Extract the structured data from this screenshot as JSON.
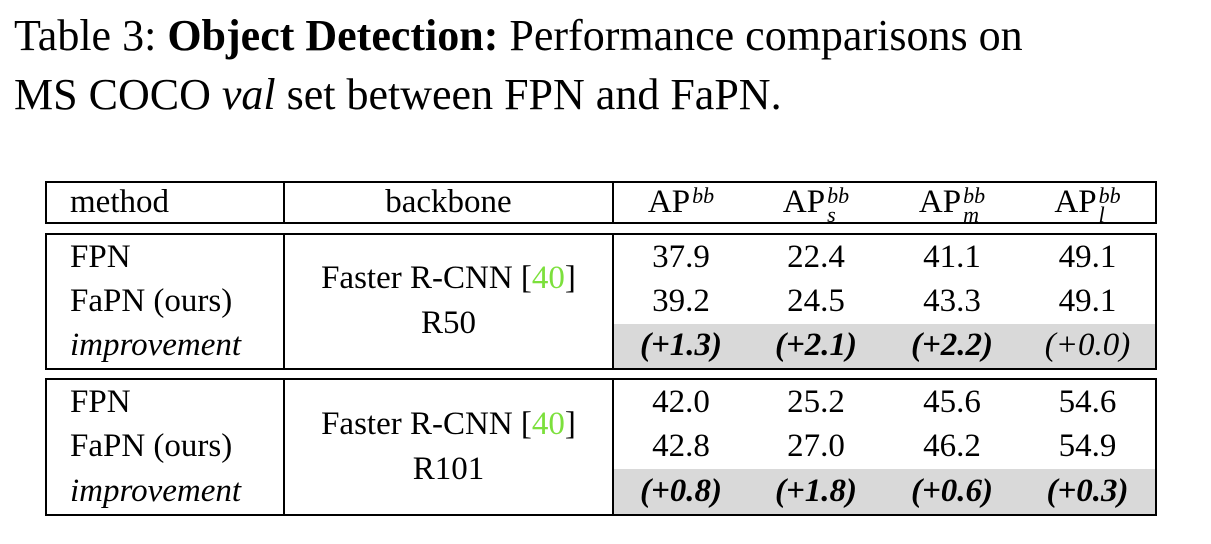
{
  "colors": {
    "cite_green": "#7CE03C",
    "row_shade": "#D9D9D9",
    "text": "#000000"
  },
  "caption": {
    "line1": {
      "prefix": "Table 3:",
      "bold": "Object Detection:",
      "rest": "Performance comparisons on"
    },
    "line2": {
      "pre": "MS COCO",
      "italic": "val",
      "post": "set between FPN and FaPN."
    }
  },
  "table": {
    "header": {
      "method": "method",
      "backbone": "backbone",
      "ap_cols": [
        {
          "base": "AP",
          "sup": "bb",
          "sub": ""
        },
        {
          "base": "AP",
          "sup": "bb",
          "sub": "s"
        },
        {
          "base": "AP",
          "sup": "bb",
          "sub": "m"
        },
        {
          "base": "AP",
          "sup": "bb",
          "sub": "l"
        }
      ]
    },
    "blocks": [
      {
        "backbone": {
          "name": "Faster R-CNN",
          "cite_open": "[",
          "cite_num": "40",
          "cite_close": "]",
          "variant": "R50"
        },
        "rows": [
          {
            "method": "FPN",
            "values": [
              {
                "text": "37.9"
              },
              {
                "text": "22.4"
              },
              {
                "text": "41.1"
              },
              {
                "text": "49.1"
              }
            ]
          },
          {
            "method": "FaPN (ours)",
            "values": [
              {
                "text": "39.2"
              },
              {
                "text": "24.5"
              },
              {
                "text": "43.3"
              },
              {
                "text": "49.1"
              }
            ]
          },
          {
            "method": "improvement",
            "values": [
              {
                "text": "(+1.3)",
                "bold": true
              },
              {
                "text": "(+2.1)",
                "bold": true
              },
              {
                "text": "(+2.2)",
                "bold": true
              },
              {
                "text": "(+0.0)",
                "bold": false
              }
            ]
          }
        ]
      },
      {
        "backbone": {
          "name": "Faster R-CNN",
          "cite_open": "[",
          "cite_num": "40",
          "cite_close": "]",
          "variant": "R101"
        },
        "rows": [
          {
            "method": "FPN",
            "values": [
              {
                "text": "42.0"
              },
              {
                "text": "25.2"
              },
              {
                "text": "45.6"
              },
              {
                "text": "54.6"
              }
            ]
          },
          {
            "method": "FaPN (ours)",
            "values": [
              {
                "text": "42.8"
              },
              {
                "text": "27.0"
              },
              {
                "text": "46.2"
              },
              {
                "text": "54.9"
              }
            ]
          },
          {
            "method": "improvement",
            "values": [
              {
                "text": "(+0.8)",
                "bold": true
              },
              {
                "text": "(+1.8)",
                "bold": true
              },
              {
                "text": "(+0.6)",
                "bold": true
              },
              {
                "text": "(+0.3)",
                "bold": true
              }
            ]
          }
        ]
      }
    ]
  }
}
